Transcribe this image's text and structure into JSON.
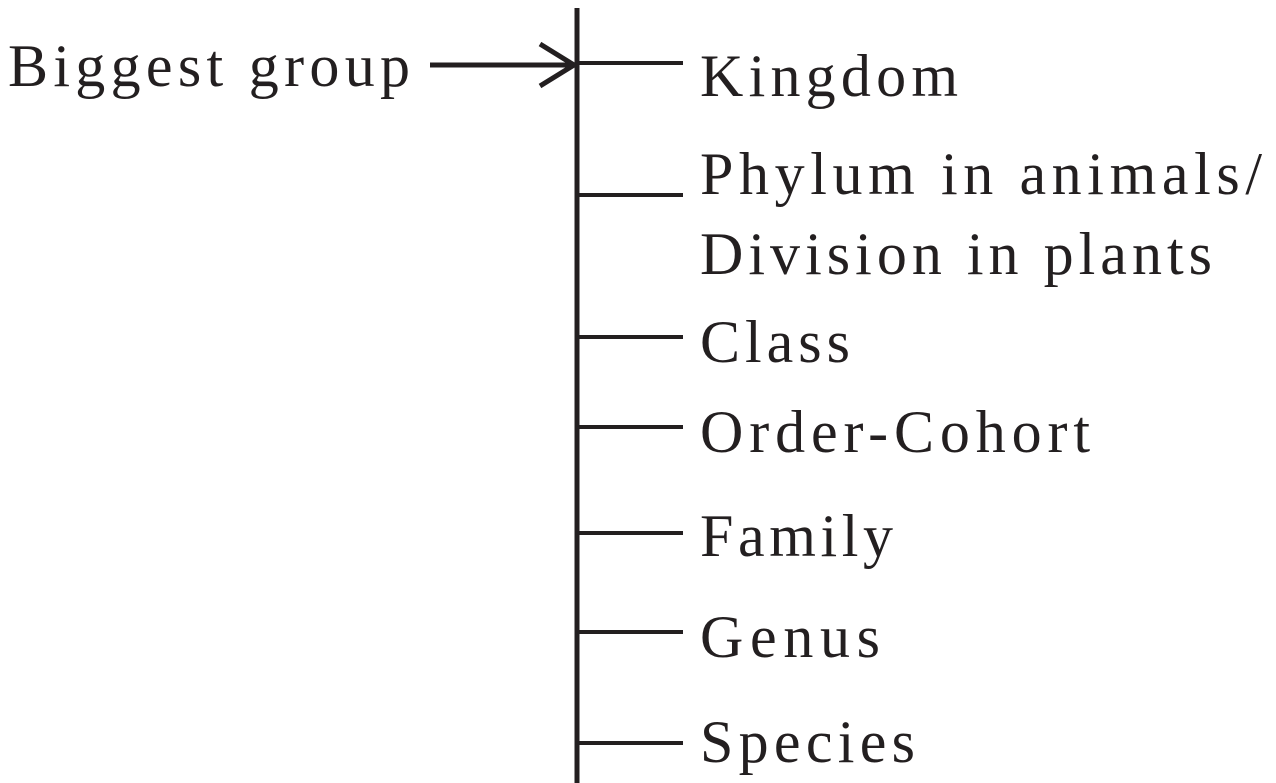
{
  "pointer_label": "Biggest group",
  "ranks": [
    {
      "lines": [
        "Kingdom"
      ]
    },
    {
      "lines": [
        "Phylum in animals/",
        "Division in plants"
      ]
    },
    {
      "lines": [
        "Class"
      ]
    },
    {
      "lines": [
        "Order-Cohort"
      ]
    },
    {
      "lines": [
        "Family"
      ]
    },
    {
      "lines": [
        "Genus"
      ]
    },
    {
      "lines": [
        "Species"
      ]
    }
  ],
  "colors": {
    "ink": "#231f20",
    "background": "#ffffff"
  }
}
